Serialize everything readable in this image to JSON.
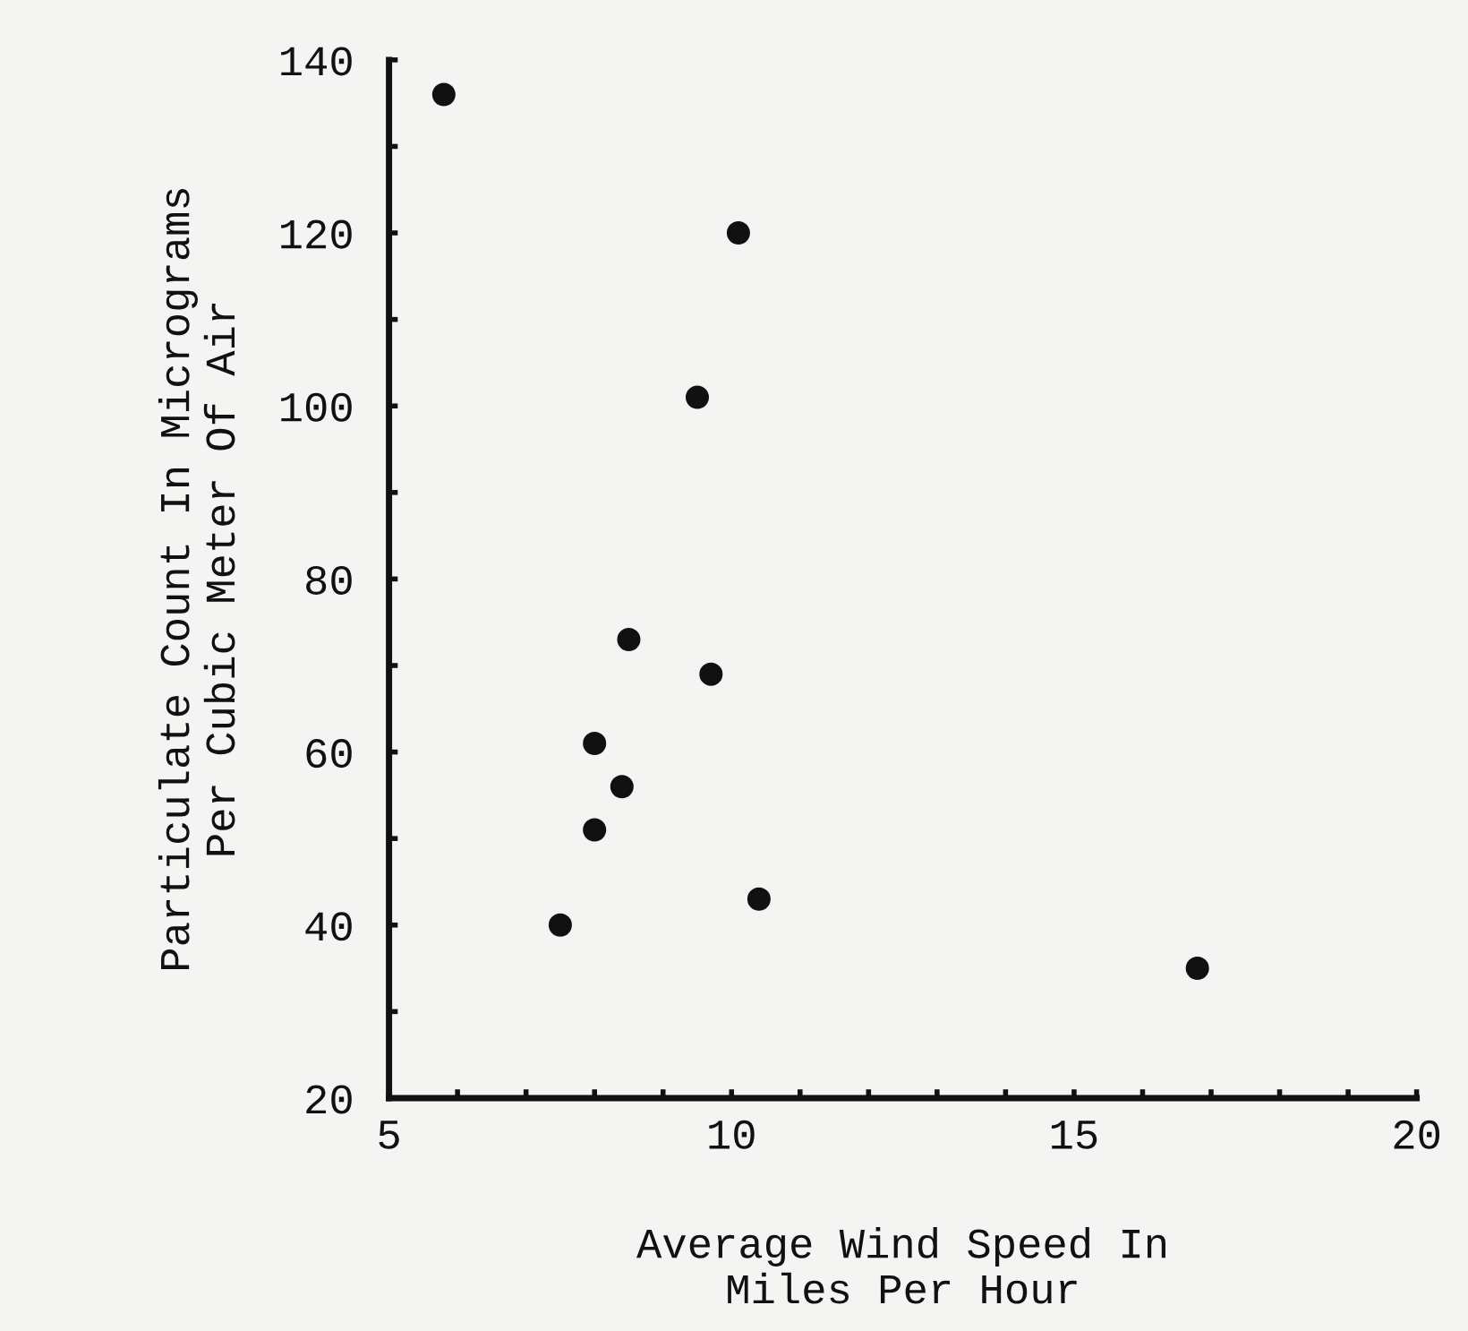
{
  "chart_data": {
    "type": "scatter",
    "xlabel": "Average Wind Speed In\nMiles Per Hour",
    "ylabel": "Particulate Count In Micrograms\nPer Cubic Meter Of Air",
    "x": [
      5.8,
      10.1,
      9.5,
      8.5,
      9.7,
      8.0,
      8.4,
      8.0,
      7.5,
      10.4,
      16.8
    ],
    "values": [
      136,
      120,
      101,
      73,
      69,
      61,
      56,
      51,
      40,
      43,
      35
    ],
    "color": "#111111",
    "marker": "circle",
    "xlim": [
      5,
      20
    ],
    "ylim": [
      20,
      140
    ],
    "xticks": [
      5,
      {
        "value": 6,
        "label": null
      },
      {
        "value": 7,
        "label": null
      },
      {
        "value": 8,
        "label": null
      },
      {
        "value": 9,
        "label": null
      },
      10,
      {
        "value": 11,
        "label": null
      },
      {
        "value": 12,
        "label": null
      },
      {
        "value": 13,
        "label": null
      },
      {
        "value": 14,
        "label": null
      },
      15,
      {
        "value": 16,
        "label": null
      },
      {
        "value": 17,
        "label": null
      },
      {
        "value": 18,
        "label": null
      },
      {
        "value": 19,
        "label": null
      },
      20
    ],
    "yticks": [
      20,
      {
        "value": 30,
        "label": null
      },
      40,
      {
        "value": 50,
        "label": null
      },
      60,
      {
        "value": 70,
        "label": null
      },
      80,
      {
        "value": 90,
        "label": null
      },
      100,
      {
        "value": 110,
        "label": null
      },
      120,
      {
        "value": 130,
        "label": null
      },
      140
    ],
    "grid": false
  }
}
